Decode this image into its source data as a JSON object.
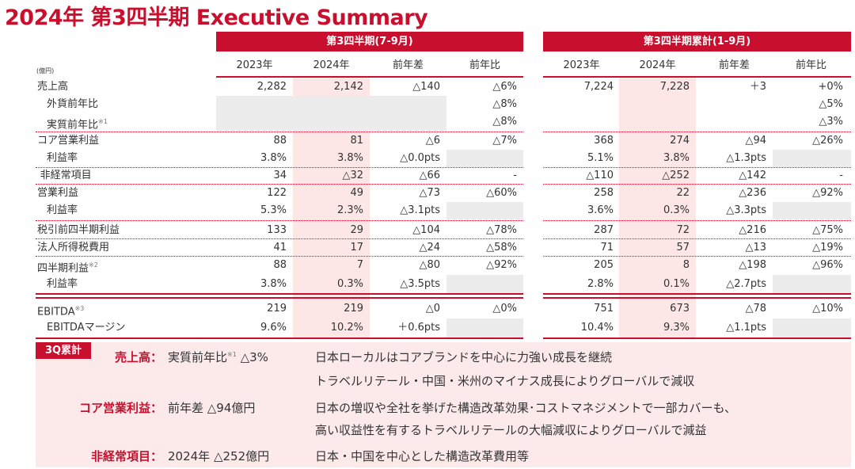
{
  "title": "2024年 第3四半期 Executive Summary",
  "unit": "(億円)",
  "blocks": [
    {
      "title": "第3四半期(7-9月)"
    },
    {
      "title": "第3四半期累計(1-9月)"
    }
  ],
  "columns": [
    "2023年",
    "2024年",
    "前年差",
    "前年比"
  ],
  "rows": [
    {
      "label": "売上高",
      "indent": 0,
      "q3": [
        "2,282",
        "2,142",
        "△140",
        "△6%"
      ],
      "ytd": [
        "7,224",
        "7,228",
        "＋3",
        "+0%"
      ]
    },
    {
      "label": "外貨前年比",
      "indent": 1,
      "q3": [
        "",
        "",
        "",
        "△8%"
      ],
      "ytd": [
        "",
        "",
        "",
        "△5%"
      ],
      "gray": "first3"
    },
    {
      "label": "実質前年比",
      "note": "※1",
      "indent": 1,
      "q3": [
        "",
        "",
        "",
        "△8%"
      ],
      "ytd": [
        "",
        "",
        "",
        "△3%"
      ],
      "gray": "first3"
    },
    {
      "label": "コア営業利益",
      "indent": 0,
      "q3": [
        "88",
        "81",
        "△6",
        "△7%"
      ],
      "ytd": [
        "368",
        "274",
        "△94",
        "△26%"
      ]
    },
    {
      "label": "利益率",
      "indent": 1,
      "q3": [
        "3.8%",
        "3.8%",
        "△0.0pts",
        ""
      ],
      "ytd": [
        "5.1%",
        "3.8%",
        "△1.3pts",
        ""
      ],
      "gray": "last"
    },
    {
      "label": "非経常項目",
      "indent": 0.3,
      "q3": [
        "34",
        "△32",
        "△66",
        "-"
      ],
      "ytd": [
        "△110",
        "△252",
        "△142",
        "-"
      ]
    },
    {
      "label": "営業利益",
      "indent": 0,
      "q3": [
        "122",
        "49",
        "△73",
        "△60%"
      ],
      "ytd": [
        "258",
        "22",
        "△236",
        "△92%"
      ]
    },
    {
      "label": "利益率",
      "indent": 1,
      "q3": [
        "5.3%",
        "2.3%",
        "△3.1pts",
        ""
      ],
      "ytd": [
        "3.6%",
        "0.3%",
        "△3.3pts",
        ""
      ],
      "gray": "last"
    },
    {
      "label": "税引前四半期利益",
      "indent": 0,
      "q3": [
        "133",
        "29",
        "△104",
        "△78%"
      ],
      "ytd": [
        "287",
        "72",
        "△216",
        "△75%"
      ]
    },
    {
      "label": "法人所得税費用",
      "indent": 0,
      "q3": [
        "41",
        "17",
        "△24",
        "△58%"
      ],
      "ytd": [
        "71",
        "57",
        "△13",
        "△19%"
      ]
    },
    {
      "label": "四半期利益",
      "note": "※2",
      "indent": 0,
      "q3": [
        "88",
        "7",
        "△80",
        "△92%"
      ],
      "ytd": [
        "205",
        "8",
        "△198",
        "△96%"
      ]
    },
    {
      "label": "利益率",
      "indent": 1,
      "q3": [
        "3.8%",
        "0.3%",
        "△3.5pts",
        ""
      ],
      "ytd": [
        "2.8%",
        "0.1%",
        "△2.7pts",
        ""
      ],
      "gray": "last"
    },
    {
      "label": "EBITDA",
      "note": "※3",
      "indent": 0,
      "q3": [
        "219",
        "219",
        "△0",
        "△0%"
      ],
      "ytd": [
        "751",
        "673",
        "△78",
        "△10%"
      ]
    },
    {
      "label": "EBITDAマージン",
      "indent": 1,
      "q3": [
        "9.6%",
        "10.2%",
        "＋0.6pts",
        ""
      ],
      "ytd": [
        "10.4%",
        "9.3%",
        "△1.1pts",
        ""
      ],
      "gray": "last"
    }
  ],
  "summary": {
    "tag": "3Q累計",
    "items": [
      {
        "key": "売上高：",
        "value": "実質前年比",
        "note": "※1",
        "value2": " △3%",
        "lines": [
          "日本ローカルはコアブランドを中心に力強い成長を継続",
          "トラベルリテール・中国・米州のマイナス成長によりグローバルで減収"
        ]
      },
      {
        "key": "コア営業利益：",
        "value": "前年差 △94億円",
        "lines": [
          "日本の増収や全社を挙げた構造改革効果･コストマネジメントで一部カバーも、",
          "高い収益性を有するトラベルリテールの大幅減収によりグローバルで減益"
        ]
      },
      {
        "key": "非経常項目：",
        "value": "2024年 △252億円",
        "lines": [
          "日本・中国を中心とした構造改革費用等"
        ]
      }
    ]
  }
}
